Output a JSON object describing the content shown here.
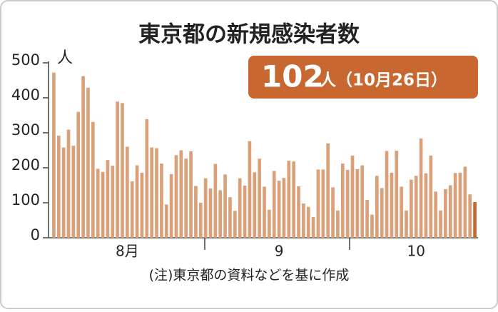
{
  "chart_data": {
    "type": "bar",
    "title": "東京都の新規感染者数",
    "y_unit": "人",
    "annotation_value": "102",
    "annotation_text": "人（10月26日）",
    "note": "(注)東京都の資料などを基に作成",
    "color": "#d9a07a",
    "highlight_color": "#c8672f",
    "ylim": [
      0,
      500
    ],
    "yticks": [
      0,
      100,
      200,
      300,
      400,
      500
    ],
    "grid": false,
    "categories": [
      null,
      null,
      null,
      null,
      null,
      null,
      null,
      null,
      null,
      null,
      null,
      null,
      null,
      null,
      null,
      "8月",
      null,
      null,
      null,
      null,
      null,
      null,
      null,
      null,
      null,
      null,
      null,
      null,
      null,
      null,
      null,
      null,
      null,
      null,
      null,
      null,
      null,
      null,
      null,
      null,
      null,
      null,
      null,
      null,
      null,
      null,
      "9",
      null,
      null,
      null,
      null,
      null,
      null,
      null,
      null,
      null,
      null,
      null,
      null,
      null,
      null,
      null,
      null,
      null,
      null,
      null,
      null,
      null,
      null,
      null,
      null,
      null,
      null,
      null,
      "10",
      null,
      null,
      null,
      null,
      null,
      null,
      null,
      null,
      null,
      null,
      null,
      null
    ],
    "values": [
      472,
      292,
      258,
      309,
      263,
      360,
      462,
      429,
      331,
      197,
      188,
      222,
      206,
      389,
      385,
      260,
      161,
      207,
      186,
      339,
      258,
      256,
      212,
      95,
      182,
      236,
      250,
      226,
      247,
      148,
      100,
      170,
      141,
      211,
      136,
      181,
      116,
      77,
      170,
      149,
      276,
      187,
      226,
      146,
      80,
      191,
      163,
      171,
      220,
      218,
      147,
      98,
      88,
      59,
      195,
      195,
      270,
      144,
      78,
      212,
      194,
      235,
      196,
      207,
      108,
      66,
      177,
      142,
      248,
      186,
      249,
      146,
      78,
      166,
      177,
      284,
      184,
      235,
      132,
      78,
      139,
      150,
      185,
      186,
      203,
      124,
      102
    ]
  }
}
